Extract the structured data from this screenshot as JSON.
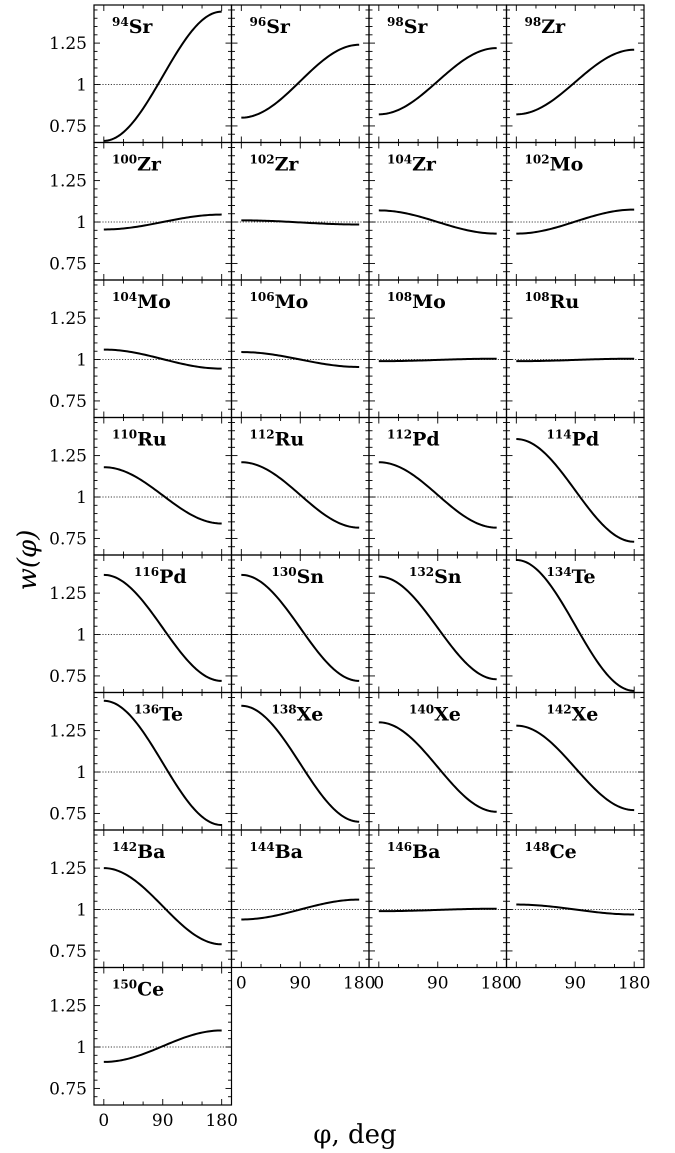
{
  "chart_data": {
    "type": "line",
    "ylabel": "w(φ)",
    "xlabel": "φ, deg",
    "xlim": [
      -15,
      195
    ],
    "ylim": [
      0.65,
      1.48
    ],
    "x_ticks": [
      0,
      90,
      180
    ],
    "x_tick_labels": [
      "0",
      "90",
      "180"
    ],
    "y_ticks": [
      0.75,
      1,
      1.25
    ],
    "y_tick_labels": [
      "0.75",
      "1",
      "1.25"
    ],
    "reference_line_y": 1,
    "grid": false,
    "panels": [
      {
        "mass": "94",
        "element": "Sr",
        "w0": 0.66,
        "w180": 1.44
      },
      {
        "mass": "96",
        "element": "Sr",
        "w0": 0.8,
        "w180": 1.24
      },
      {
        "mass": "98",
        "element": "Sr",
        "w0": 0.82,
        "w180": 1.22
      },
      {
        "mass": "98",
        "element": "Zr",
        "w0": 0.82,
        "w180": 1.21
      },
      {
        "mass": "100",
        "element": "Zr",
        "w0": 0.955,
        "w180": 1.045
      },
      {
        "mass": "102",
        "element": "Zr",
        "w0": 1.01,
        "w180": 0.985
      },
      {
        "mass": "104",
        "element": "Zr",
        "w0": 1.07,
        "w180": 0.93
      },
      {
        "mass": "102",
        "element": "Mo",
        "w0": 0.93,
        "w180": 1.075
      },
      {
        "mass": "104",
        "element": "Mo",
        "w0": 1.06,
        "w180": 0.945
      },
      {
        "mass": "106",
        "element": "Mo",
        "w0": 1.045,
        "w180": 0.955
      },
      {
        "mass": "108",
        "element": "Mo",
        "w0": 0.99,
        "w180": 1.005
      },
      {
        "mass": "108",
        "element": "Ru",
        "w0": 0.99,
        "w180": 1.005
      },
      {
        "mass": "110",
        "element": "Ru",
        "w0": 1.18,
        "w180": 0.84
      },
      {
        "mass": "112",
        "element": "Ru",
        "w0": 1.21,
        "w180": 0.815
      },
      {
        "mass": "112",
        "element": "Pd",
        "w0": 1.21,
        "w180": 0.815
      },
      {
        "mass": "114",
        "element": "Pd",
        "w0": 1.35,
        "w180": 0.73
      },
      {
        "mass": "116",
        "element": "Pd",
        "w0": 1.36,
        "w180": 0.72
      },
      {
        "mass": "130",
        "element": "Sn",
        "w0": 1.36,
        "w180": 0.72
      },
      {
        "mass": "132",
        "element": "Sn",
        "w0": 1.35,
        "w180": 0.73
      },
      {
        "mass": "134",
        "element": "Te",
        "w0": 1.45,
        "w180": 0.66
      },
      {
        "mass": "136",
        "element": "Te",
        "w0": 1.43,
        "w180": 0.68
      },
      {
        "mass": "138",
        "element": "Xe",
        "w0": 1.4,
        "w180": 0.7
      },
      {
        "mass": "140",
        "element": "Xe",
        "w0": 1.3,
        "w180": 0.76
      },
      {
        "mass": "142",
        "element": "Xe",
        "w0": 1.28,
        "w180": 0.77
      },
      {
        "mass": "142",
        "element": "Ba",
        "w0": 1.25,
        "w180": 0.79
      },
      {
        "mass": "144",
        "element": "Ba",
        "w0": 0.94,
        "w180": 1.06
      },
      {
        "mass": "146",
        "element": "Ba",
        "w0": 0.99,
        "w180": 1.005
      },
      {
        "mass": "148",
        "element": "Ce",
        "w0": 1.03,
        "w180": 0.97
      },
      {
        "mass": "150",
        "element": "Ce",
        "w0": 0.91,
        "w180": 1.1
      }
    ]
  }
}
